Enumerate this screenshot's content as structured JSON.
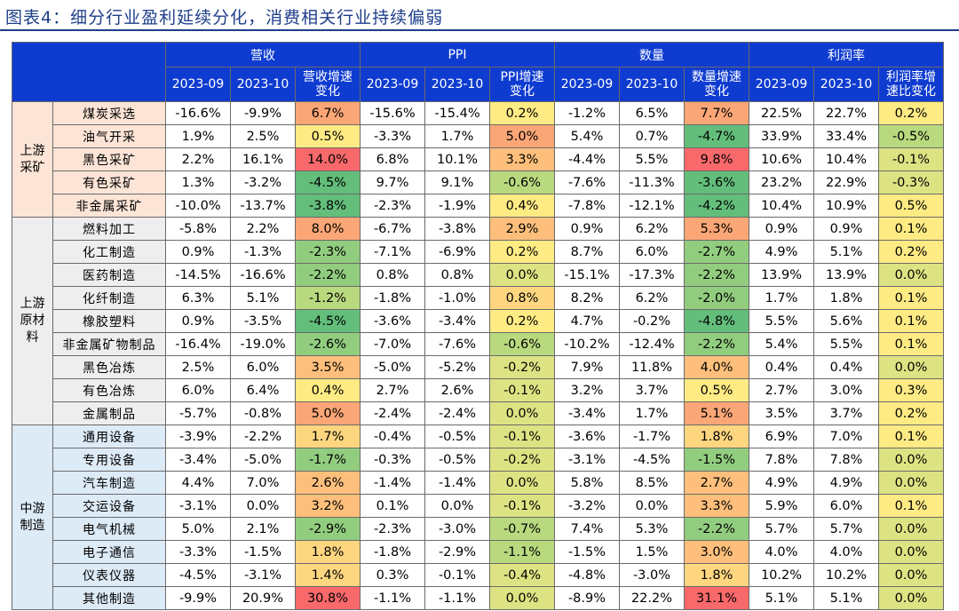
{
  "title": "图表4：细分行业盈利延续分化，消费相关行业持续偏弱",
  "groups": [
    "营收",
    "PPI",
    "数量",
    "利润率"
  ],
  "subheaders": [
    "2023-09",
    "2023-10",
    "营收增速\n变化",
    "2023-09",
    "2023-10",
    "PPI增速\n变化",
    "2023-09",
    "2023-10",
    "数量增速\n变化",
    "2023-09",
    "2023-10",
    "利润率增\n速比变化"
  ],
  "sections": [
    {
      "label": "上游\n采矿",
      "bg": "#fce4d6",
      "rows": [
        {
          "name": "煤炭采选",
          "v": [
            "-16.6%",
            "-9.9%",
            "6.7%",
            "-15.6%",
            "-15.4%",
            "0.2%",
            "-1.2%",
            "6.5%",
            "7.7%",
            "22.5%",
            "22.7%",
            "0.2%"
          ]
        },
        {
          "name": "油气开采",
          "v": [
            "1.9%",
            "2.5%",
            "0.5%",
            "-3.3%",
            "1.7%",
            "5.0%",
            "5.4%",
            "0.7%",
            "-4.7%",
            "33.9%",
            "33.4%",
            "-0.5%"
          ]
        },
        {
          "name": "黑色采矿",
          "v": [
            "2.2%",
            "16.1%",
            "14.0%",
            "6.8%",
            "10.1%",
            "3.3%",
            "-4.4%",
            "5.5%",
            "9.8%",
            "10.6%",
            "10.4%",
            "-0.1%"
          ]
        },
        {
          "name": "有色采矿",
          "v": [
            "1.3%",
            "-3.2%",
            "-4.5%",
            "9.7%",
            "9.1%",
            "-0.6%",
            "-7.6%",
            "-11.3%",
            "-3.6%",
            "23.2%",
            "22.9%",
            "-0.3%"
          ]
        },
        {
          "name": "非金属采矿",
          "v": [
            "-10.0%",
            "-13.7%",
            "-3.8%",
            "-2.3%",
            "-1.9%",
            "0.4%",
            "-7.8%",
            "-12.1%",
            "-4.2%",
            "10.4%",
            "10.9%",
            "0.5%"
          ]
        }
      ]
    },
    {
      "label": "上游\n原材\n料",
      "bg": "#eeeeee",
      "rows": [
        {
          "name": "燃料加工",
          "v": [
            "-5.8%",
            "2.2%",
            "8.0%",
            "-6.7%",
            "-3.8%",
            "2.9%",
            "0.9%",
            "6.2%",
            "5.3%",
            "0.9%",
            "0.9%",
            "0.1%"
          ]
        },
        {
          "name": "化工制造",
          "v": [
            "0.9%",
            "-1.3%",
            "-2.3%",
            "-7.1%",
            "-6.9%",
            "0.2%",
            "8.7%",
            "6.0%",
            "-2.7%",
            "4.9%",
            "5.1%",
            "0.2%"
          ]
        },
        {
          "name": "医药制造",
          "v": [
            "-14.5%",
            "-16.6%",
            "-2.2%",
            "0.8%",
            "0.8%",
            "0.0%",
            "-15.1%",
            "-17.3%",
            "-2.2%",
            "13.9%",
            "13.9%",
            "0.0%"
          ]
        },
        {
          "name": "化纤制造",
          "v": [
            "6.3%",
            "5.1%",
            "-1.2%",
            "-1.8%",
            "-1.0%",
            "0.8%",
            "8.2%",
            "6.2%",
            "-2.0%",
            "1.7%",
            "1.8%",
            "0.1%"
          ]
        },
        {
          "name": "橡胶塑料",
          "v": [
            "0.9%",
            "-3.5%",
            "-4.5%",
            "-3.6%",
            "-3.4%",
            "0.2%",
            "4.7%",
            "-0.2%",
            "-4.8%",
            "5.5%",
            "5.6%",
            "0.1%"
          ]
        },
        {
          "name": "非金属矿物制品",
          "v": [
            "-16.4%",
            "-19.0%",
            "-2.6%",
            "-7.0%",
            "-7.6%",
            "-0.6%",
            "-10.2%",
            "-12.4%",
            "-2.2%",
            "5.4%",
            "5.5%",
            "0.1%"
          ]
        },
        {
          "name": "黑色冶炼",
          "v": [
            "2.5%",
            "6.0%",
            "3.5%",
            "-5.0%",
            "-5.2%",
            "-0.2%",
            "7.9%",
            "11.8%",
            "4.0%",
            "0.4%",
            "0.4%",
            "0.0%"
          ]
        },
        {
          "name": "有色冶炼",
          "v": [
            "6.0%",
            "6.4%",
            "0.4%",
            "2.7%",
            "2.6%",
            "-0.1%",
            "3.2%",
            "3.7%",
            "0.5%",
            "2.7%",
            "3.0%",
            "0.3%"
          ]
        },
        {
          "name": "金属制品",
          "v": [
            "-5.7%",
            "-0.8%",
            "5.0%",
            "-2.4%",
            "-2.4%",
            "0.0%",
            "-3.4%",
            "1.7%",
            "5.1%",
            "3.5%",
            "3.7%",
            "0.2%"
          ]
        }
      ]
    },
    {
      "label": "中游\n制造",
      "bg": "#ddebf7",
      "rows": [
        {
          "name": "通用设备",
          "v": [
            "-3.9%",
            "-2.2%",
            "1.7%",
            "-0.4%",
            "-0.5%",
            "-0.1%",
            "-3.6%",
            "-1.7%",
            "1.8%",
            "6.9%",
            "7.0%",
            "0.1%"
          ]
        },
        {
          "name": "专用设备",
          "v": [
            "-3.4%",
            "-5.0%",
            "-1.7%",
            "-0.3%",
            "-0.5%",
            "-0.2%",
            "-3.1%",
            "-4.5%",
            "-1.5%",
            "7.8%",
            "7.8%",
            "0.0%"
          ]
        },
        {
          "name": "汽车制造",
          "v": [
            "4.4%",
            "7.0%",
            "2.6%",
            "-1.4%",
            "-1.4%",
            "0.0%",
            "5.8%",
            "8.5%",
            "2.7%",
            "4.9%",
            "4.9%",
            "0.0%"
          ]
        },
        {
          "name": "交运设备",
          "v": [
            "-3.1%",
            "0.0%",
            "3.2%",
            "0.1%",
            "0.0%",
            "-0.1%",
            "-3.2%",
            "0.0%",
            "3.3%",
            "5.9%",
            "6.0%",
            "0.1%"
          ]
        },
        {
          "name": "电气机械",
          "v": [
            "5.0%",
            "2.1%",
            "-2.9%",
            "-2.3%",
            "-3.0%",
            "-0.7%",
            "7.4%",
            "5.3%",
            "-2.2%",
            "5.7%",
            "5.7%",
            "0.0%"
          ]
        },
        {
          "name": "电子通信",
          "v": [
            "-3.3%",
            "-1.5%",
            "1.8%",
            "-1.8%",
            "-2.9%",
            "-1.1%",
            "-1.5%",
            "1.5%",
            "3.0%",
            "4.0%",
            "4.0%",
            "0.0%"
          ]
        },
        {
          "name": "仪表仪器",
          "v": [
            "-4.5%",
            "-3.1%",
            "1.4%",
            "0.3%",
            "-0.1%",
            "-0.4%",
            "-4.8%",
            "-3.0%",
            "1.8%",
            "10.2%",
            "10.2%",
            "0.0%"
          ]
        },
        {
          "name": "其他制造",
          "v": [
            "-9.9%",
            "20.9%",
            "30.8%",
            "-1.1%",
            "-1.1%",
            "0.0%",
            "-8.9%",
            "22.2%",
            "31.1%",
            "5.1%",
            "5.1%",
            "0.0%"
          ]
        }
      ]
    }
  ]
}
